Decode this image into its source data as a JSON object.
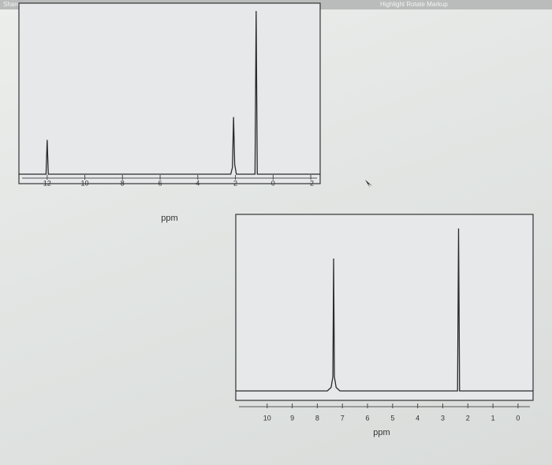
{
  "toolbar": {
    "left": "Share",
    "right": "Highlight  Rotate  Markup"
  },
  "chart_data": [
    {
      "type": "line",
      "xlabel": "ppm",
      "xlim": [
        13.5,
        -2.5
      ],
      "ylim": [
        0,
        100
      ],
      "xticks": [
        12,
        10,
        8,
        6,
        4,
        2,
        0,
        -2
      ],
      "series": [
        {
          "color": "#2a2a2a",
          "x": [
            13.5,
            12.06,
            12.0,
            11.94,
            2.25,
            2.16,
            2.1,
            2.04,
            1.95,
            0.96,
            0.9,
            0.84,
            -2.5
          ],
          "values": [
            0,
            0,
            21,
            0,
            0,
            4,
            35,
            6,
            0,
            0,
            100,
            0,
            0
          ]
        }
      ]
    },
    {
      "type": "line",
      "xlabel": "ppm",
      "xlim": [
        11.25,
        -0.6
      ],
      "ylim": [
        0,
        100
      ],
      "xticks": [
        10,
        9,
        8,
        7,
        6,
        5,
        4,
        3,
        2,
        1,
        0
      ],
      "series": [
        {
          "color": "#2a2a2a",
          "x": [
            11.25,
            7.6,
            7.45,
            7.38,
            7.35,
            7.32,
            7.25,
            7.1,
            2.41,
            2.37,
            2.33,
            -0.6
          ],
          "values": [
            0,
            0,
            2,
            8,
            75,
            8,
            2,
            0,
            0,
            92,
            0,
            0
          ]
        }
      ]
    }
  ]
}
